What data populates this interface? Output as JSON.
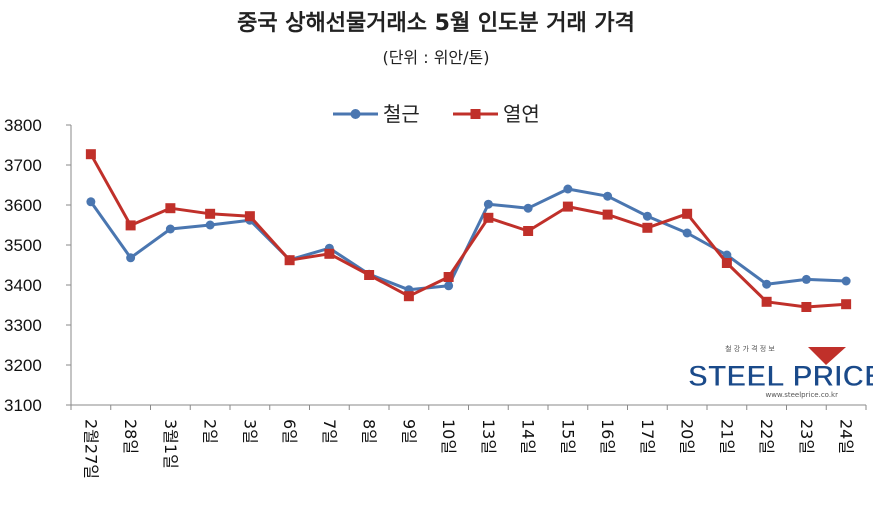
{
  "chart_data": {
    "type": "line",
    "title": "중국 상해선물거래소 5월 인도분 거래 가격",
    "subtitle": "(단위 : 위안/톤)",
    "categories": [
      "2월27일",
      "28일",
      "3월1일",
      "2일",
      "3일",
      "6일",
      "7일",
      "8일",
      "9일",
      "10일",
      "13일",
      "14일",
      "15일",
      "16일",
      "17일",
      "20일",
      "21일",
      "22일",
      "23일",
      "24일"
    ],
    "series": [
      {
        "name": "철근",
        "color": "#4a76b0",
        "marker": "circle",
        "values": [
          3608,
          3468,
          3540,
          3550,
          3562,
          3463,
          3492,
          3427,
          3388,
          3398,
          3602,
          3592,
          3640,
          3622,
          3572,
          3530,
          3475,
          3402,
          3414,
          3410
        ]
      },
      {
        "name": "열연",
        "color": "#c0302a",
        "marker": "square",
        "values": [
          3727,
          3549,
          3592,
          3578,
          3572,
          3462,
          3478,
          3425,
          3372,
          3420,
          3568,
          3535,
          3596,
          3576,
          3543,
          3578,
          3455,
          3358,
          3345,
          3352
        ]
      }
    ],
    "ylim": [
      3100,
      3800
    ],
    "yticks": [
      3100,
      3200,
      3300,
      3400,
      3500,
      3600,
      3700,
      3800
    ],
    "grid": false,
    "legend": "top-center"
  },
  "logo": {
    "text": "STEEL PRICE",
    "tagline": "철 강 가 격 정 보",
    "url": "www.steelprice.co.kr"
  }
}
